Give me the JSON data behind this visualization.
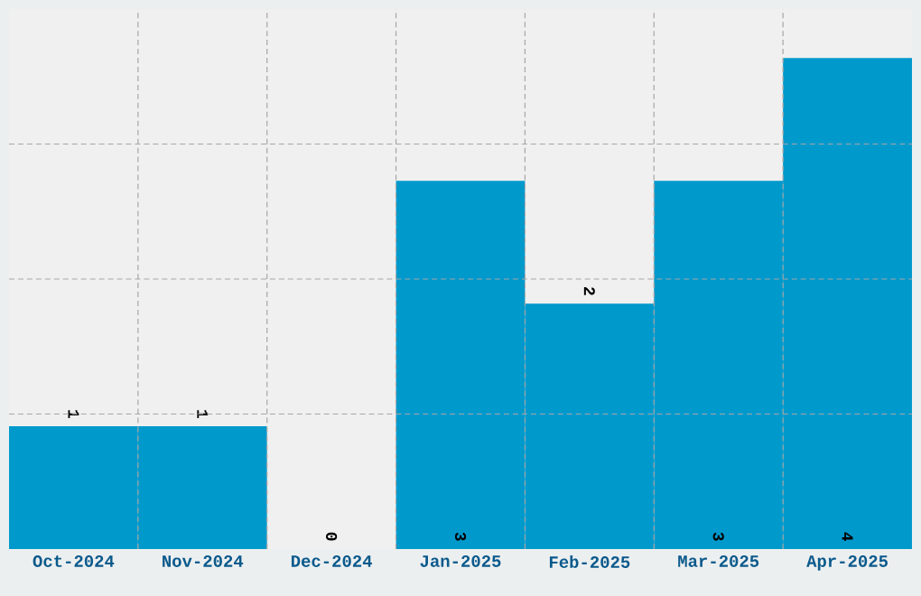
{
  "chart_data": {
    "type": "bar",
    "categories": [
      "Oct-2024",
      "Nov-2024",
      "Dec-2024",
      "Jan-2025",
      "Feb-2025",
      "Mar-2025",
      "Apr-2025"
    ],
    "values": [
      1,
      1,
      0,
      3,
      2,
      3,
      4
    ],
    "color": "#0099cc",
    "ylim": [
      0,
      4.4
    ],
    "yticks": [
      {
        "value": 1.1,
        "label": null
      },
      {
        "value": 2.2,
        "label": null
      },
      {
        "value": 3.3,
        "label": null
      }
    ],
    "tick_labels": "x",
    "grid": true,
    "data_labels": true
  }
}
